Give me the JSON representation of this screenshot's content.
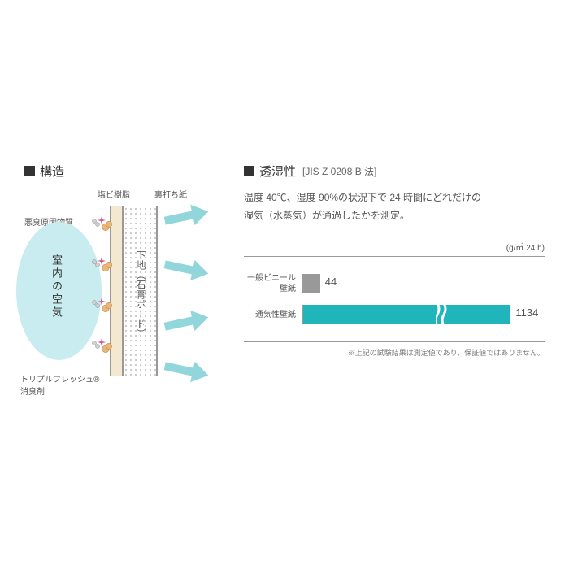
{
  "structure": {
    "title": "構造",
    "labels": {
      "resin": "塩ビ樹脂",
      "backing": "裏打ち紙",
      "odor": "悪臭原因物質",
      "air": "室内の空気",
      "board": "下地（石膏ボード）",
      "triple": "トリプルフレッシュ®\n消臭剤"
    },
    "diagram": {
      "air_circle_color": "#c9ecf0",
      "resin_color": "#f5e8d0",
      "arrow_color": "#91d6db",
      "particle_fill": "#e8b87a",
      "particle_stroke": "#c89050",
      "odor_fill": "#d0d0d0",
      "star_color": "#d94f8c",
      "particles_y": [
        38,
        88,
        138,
        188
      ],
      "arrows_y": [
        30,
        95,
        160,
        220
      ]
    }
  },
  "permeability": {
    "title": "透湿性",
    "subtitle": "[JIS Z 0208 B 法]",
    "description_l1": "温度 40℃、湿度 90%の状況下で 24 時間にどれだけの",
    "description_l2": "湿気（水蒸気）が通過したかを測定。",
    "unit": "(g/㎡ 24 h)",
    "note": "※上記の試験結果は測定値であり、保証値ではありません。",
    "chart": {
      "type": "bar",
      "max": 1200,
      "bars": [
        {
          "label_l1": "一般ビニール",
          "label_l2": "壁紙",
          "value": 44,
          "value_display": "44",
          "color": "#999999",
          "width_pct": 7,
          "break": false
        },
        {
          "label_l1": "通気性壁紙",
          "label_l2": "",
          "value": 1134,
          "value_display": "1134",
          "color": "#1fb5ba",
          "width_pct": 86,
          "break": true,
          "break_pos_pct": 55
        }
      ]
    }
  }
}
